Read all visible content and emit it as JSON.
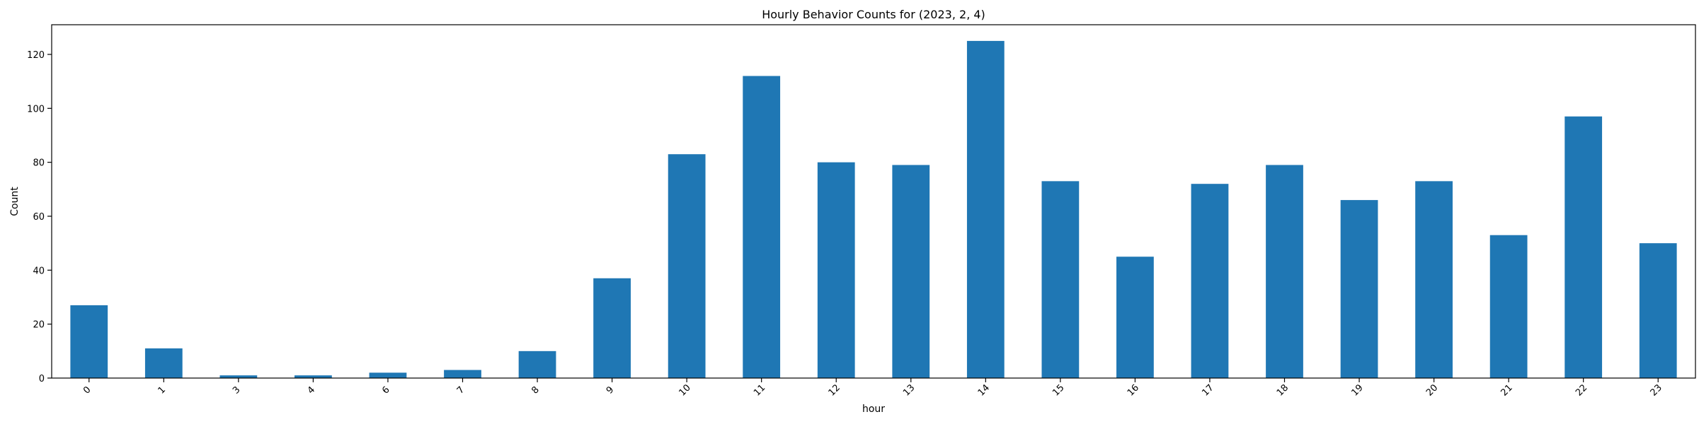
{
  "chart_data": {
    "type": "bar",
    "title": "Hourly Behavior Counts for (2023, 2, 4)",
    "xlabel": "hour",
    "ylabel": "Count",
    "categories": [
      "0",
      "1",
      "3",
      "4",
      "6",
      "7",
      "8",
      "9",
      "10",
      "11",
      "12",
      "13",
      "14",
      "15",
      "16",
      "17",
      "18",
      "19",
      "20",
      "21",
      "22",
      "23"
    ],
    "values": [
      27,
      11,
      1,
      1,
      2,
      3,
      10,
      37,
      83,
      112,
      80,
      79,
      125,
      73,
      45,
      72,
      79,
      66,
      73,
      53,
      97,
      50
    ],
    "ylim": [
      0,
      131
    ],
    "yticks": [
      0,
      20,
      40,
      60,
      80,
      100,
      120
    ],
    "bar_color": "#1f77b4",
    "grid": false,
    "legend": "none"
  }
}
